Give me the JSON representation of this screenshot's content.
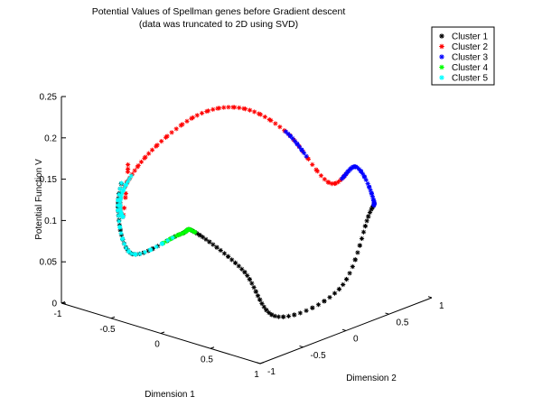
{
  "chart_data": {
    "type": "scatter3d",
    "title": [
      "Potential Values of Spellman genes before Gradient descent",
      "(data was truncated to 2D using SVD)"
    ],
    "xlabel": "Dimension 1",
    "ylabel": "Dimension 2",
    "zlabel": "Potential Function V",
    "xlim": [
      -1,
      1
    ],
    "ylim": [
      -1,
      1
    ],
    "zlim": [
      0,
      0.25
    ],
    "xticks": [
      "-1",
      "-0.5",
      "0",
      "0.5",
      "1"
    ],
    "yticks": [
      "-1",
      "-0.5",
      "0",
      "0.5",
      "1"
    ],
    "zticks": [
      "0",
      "0.05",
      "0.1",
      "0.15",
      "0.2",
      "0.25"
    ],
    "grid": false,
    "marker": "*",
    "legend_position": "top-right",
    "curve": {
      "description": "single closed curve of gene points; t runs around the loop",
      "nodes": [
        {
          "t": 0.0,
          "x": -0.78,
          "y": -0.48,
          "z": 0.155
        },
        {
          "t": 0.04,
          "x": -0.62,
          "y": -0.72,
          "z": 0.108
        },
        {
          "t": 0.1,
          "x": -0.58,
          "y": -0.78,
          "z": 0.14
        },
        {
          "t": 0.17,
          "x": -0.55,
          "y": -0.5,
          "z": 0.178
        },
        {
          "t": 0.24,
          "x": -0.58,
          "y": 0.1,
          "z": 0.199
        },
        {
          "t": 0.3,
          "x": -0.4,
          "y": 0.42,
          "z": 0.201
        },
        {
          "t": 0.36,
          "x": -0.02,
          "y": 0.49,
          "z": 0.183
        },
        {
          "t": 0.43,
          "x": 0.1,
          "y": 0.85,
          "z": 0.112
        },
        {
          "t": 0.5,
          "x": 0.28,
          "y": 0.95,
          "z": 0.134
        },
        {
          "t": 0.54,
          "x": 0.55,
          "y": 0.84,
          "z": 0.109
        },
        {
          "t": 0.58,
          "x": 0.88,
          "y": 0.4,
          "z": 0.118
        },
        {
          "t": 0.63,
          "x": 0.96,
          "y": -0.02,
          "z": 0.051
        },
        {
          "t": 0.68,
          "x": 0.56,
          "y": -0.3,
          "z": 0.013
        },
        {
          "t": 0.74,
          "x": 0.18,
          "y": -0.25,
          "z": 0.053
        },
        {
          "t": 0.8,
          "x": -0.17,
          "y": -0.4,
          "z": 0.092
        },
        {
          "t": 0.85,
          "x": -0.35,
          "y": -0.37,
          "z": 0.082
        },
        {
          "t": 0.9,
          "x": -0.48,
          "y": -0.78,
          "z": 0.07
        },
        {
          "t": 0.95,
          "x": -0.76,
          "y": -0.62,
          "z": 0.11
        },
        {
          "t": 1.0,
          "x": -0.78,
          "y": -0.48,
          "z": 0.155
        }
      ]
    },
    "series": [
      {
        "name": "Cluster 1",
        "color": "#000000",
        "count": 140,
        "segments": [
          [
            0.548,
            0.97
          ]
        ]
      },
      {
        "name": "Cluster 2",
        "color": "#ff0000",
        "count": 92,
        "segments": [
          [
            0.0,
            0.09
          ],
          [
            0.105,
            0.47
          ]
        ]
      },
      {
        "name": "Cluster 3",
        "color": "#0000ff",
        "count": 56,
        "segments": [
          [
            0.36,
            0.39
          ],
          [
            0.46,
            0.56
          ]
        ]
      },
      {
        "name": "Cluster 4",
        "color": "#00ff00",
        "count": 30,
        "segments": [
          [
            0.8,
            0.87
          ]
        ]
      },
      {
        "name": "Cluster 5",
        "color": "#00ffff",
        "count": 55,
        "segments": [
          [
            0.042,
            0.13
          ],
          [
            0.86,
            0.97
          ]
        ]
      }
    ]
  }
}
